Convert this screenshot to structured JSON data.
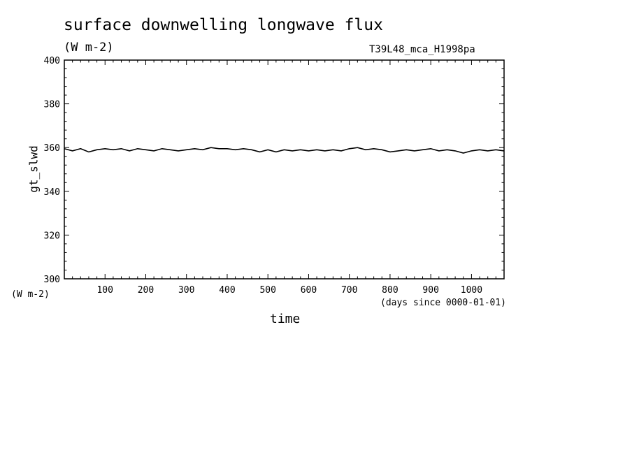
{
  "title": "surface downwelling longwave flux",
  "units": "(W m-2)",
  "run_id": "T39L48_mca_H1998pa",
  "y_units": "(W m-2)",
  "x_units": "(days since 0000-01-01)",
  "chart_data": {
    "type": "line",
    "xlabel": "time",
    "ylabel": "gt_slwd",
    "xlim": [
      0,
      1080
    ],
    "ylim": [
      300,
      400
    ],
    "xticks": [
      100,
      200,
      300,
      400,
      500,
      600,
      700,
      800,
      900,
      1000
    ],
    "yticks": [
      300,
      320,
      340,
      360,
      380,
      400
    ],
    "x": [
      0,
      20,
      40,
      60,
      80,
      100,
      120,
      140,
      160,
      180,
      200,
      220,
      240,
      260,
      280,
      300,
      320,
      340,
      360,
      380,
      400,
      420,
      440,
      460,
      480,
      500,
      520,
      540,
      560,
      580,
      600,
      620,
      640,
      660,
      680,
      700,
      720,
      740,
      760,
      780,
      800,
      820,
      840,
      860,
      880,
      900,
      920,
      940,
      960,
      980,
      1000,
      1020,
      1040,
      1060,
      1080
    ],
    "series": [
      {
        "values": [
          359.5,
          358.5,
          359.5,
          358.0,
          359.0,
          359.5,
          359.0,
          359.5,
          358.5,
          359.5,
          359.0,
          358.5,
          359.5,
          359.0,
          358.5,
          359.0,
          359.5,
          359.0,
          360.0,
          359.5,
          359.5,
          359.0,
          359.5,
          359.0,
          358.0,
          359.0,
          358.0,
          359.0,
          358.5,
          359.0,
          358.5,
          359.0,
          358.5,
          359.0,
          358.5,
          359.5,
          360.0,
          359.0,
          359.5,
          359.0,
          358.0,
          358.5,
          359.0,
          358.5,
          359.0,
          359.5,
          358.5,
          359.0,
          358.5,
          357.5,
          358.5,
          359.0,
          358.5,
          359.0,
          358.5
        ]
      }
    ],
    "grid": false
  }
}
